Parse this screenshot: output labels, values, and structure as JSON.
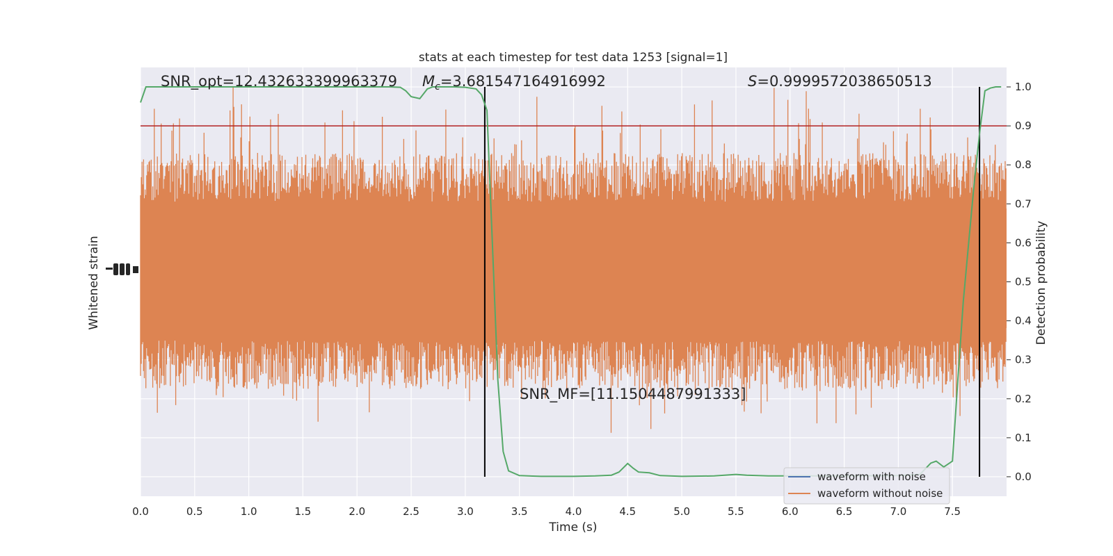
{
  "chart_data": {
    "type": "line",
    "title": "stats at each timestep for test data 1253 [signal=1]",
    "xlabel": "Time (s)",
    "ylabel_left": "Whitened strain",
    "ylabel_right": "Detection probability",
    "xlim": [
      0.0,
      8.0
    ],
    "ylim_right": [
      -0.05,
      1.05
    ],
    "x_ticks": [
      "0.0",
      "0.5",
      "1.0",
      "1.5",
      "2.0",
      "2.5",
      "3.0",
      "3.5",
      "4.0",
      "4.5",
      "5.0",
      "5.5",
      "6.0",
      "6.5",
      "7.0",
      "7.5"
    ],
    "y_ticks_right": [
      "0.0",
      "0.1",
      "0.2",
      "0.3",
      "0.4",
      "0.5",
      "0.6",
      "0.7",
      "0.8",
      "0.9",
      "1.0"
    ],
    "grid": true,
    "legend_location": "lower right",
    "annotations": {
      "snr_opt": "SNR_opt=12.432633399963379",
      "mc_symbol": "M",
      "mc_subscript": "c",
      "mc_value": "=3.681547164916992",
      "s_symbol": "S",
      "s_value": "=0.9999572038650513",
      "snr_mf": "SNR_MF=[11.1504487991333]"
    },
    "threshold": {
      "value": 0.9,
      "color": "#b22222"
    },
    "vertical_lines": [
      3.18,
      7.75
    ],
    "series": [
      {
        "name": "waveform with noise",
        "color": "#4c72b0"
      },
      {
        "name": "waveform without noise",
        "color": "#dd8452"
      },
      {
        "color": "#55a868",
        "x": [
          0.0,
          0.05,
          0.1,
          0.2,
          0.5,
          1.0,
          1.5,
          2.0,
          2.3,
          2.4,
          2.45,
          2.5,
          2.58,
          2.65,
          2.7,
          2.9,
          3.0,
          3.1,
          3.15,
          3.2,
          3.25,
          3.3,
          3.35,
          3.4,
          3.5,
          3.7,
          4.0,
          4.2,
          4.35,
          4.42,
          4.5,
          4.55,
          4.6,
          4.7,
          4.8,
          5.0,
          5.3,
          5.5,
          5.6,
          5.8,
          6.0,
          6.5,
          7.0,
          7.2,
          7.3,
          7.35,
          7.42,
          7.5,
          7.55,
          7.6,
          7.65,
          7.7,
          7.75,
          7.8,
          7.85,
          7.9,
          7.95
        ],
        "y": [
          0.96,
          1.0,
          1.0,
          1.0,
          1.0,
          1.0,
          1.0,
          1.0,
          1.0,
          0.999,
          0.99,
          0.975,
          0.97,
          0.995,
          1.0,
          1.0,
          0.999,
          0.995,
          0.98,
          0.94,
          0.6,
          0.25,
          0.065,
          0.015,
          0.003,
          0.001,
          0.001,
          0.002,
          0.004,
          0.012,
          0.034,
          0.022,
          0.012,
          0.01,
          0.003,
          0.001,
          0.002,
          0.006,
          0.004,
          0.002,
          0.002,
          0.002,
          0.003,
          0.006,
          0.035,
          0.04,
          0.025,
          0.04,
          0.25,
          0.45,
          0.6,
          0.75,
          0.88,
          0.99,
          0.997,
          1.0,
          1.0
        ]
      }
    ]
  }
}
